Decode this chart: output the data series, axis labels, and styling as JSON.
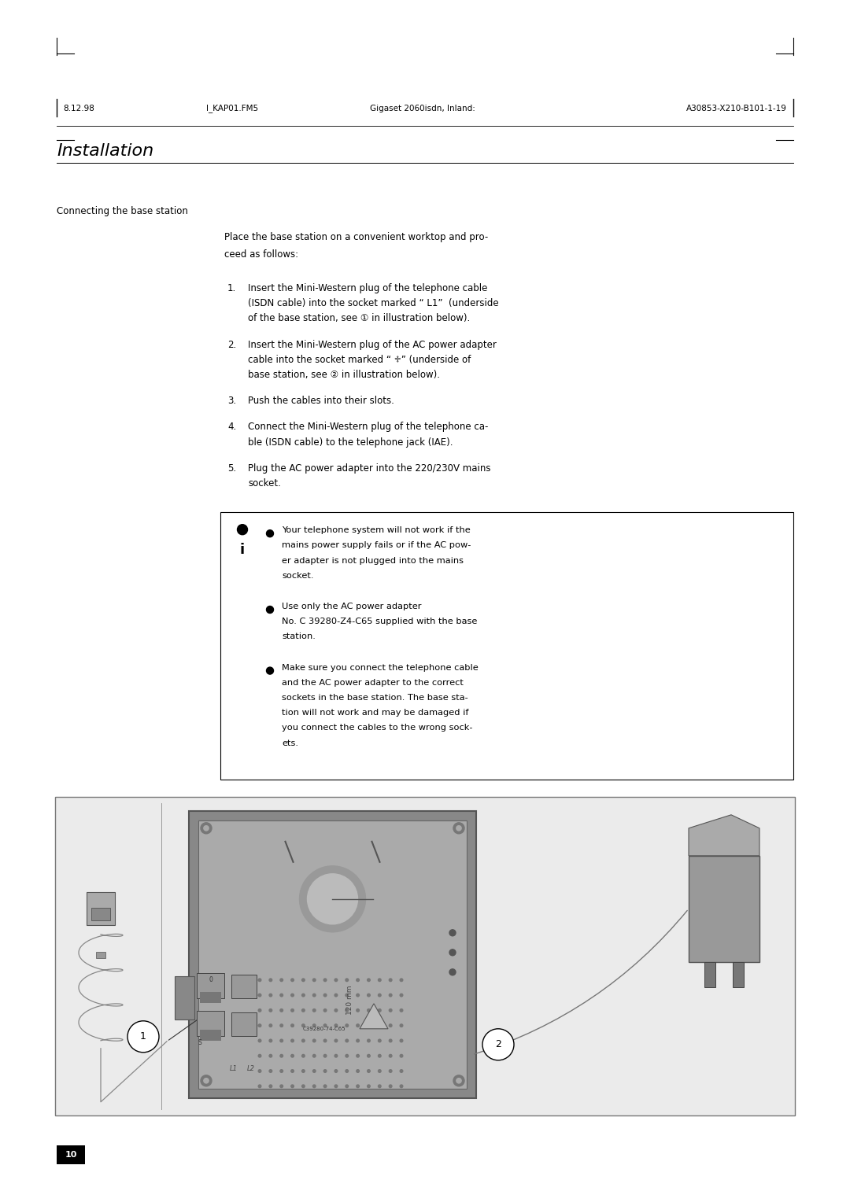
{
  "bg_color": "#ffffff",
  "page_width": 10.8,
  "page_height": 15.28,
  "header_left": "8.12.98",
  "header_center_left": "I_KAP01.FM5",
  "header_center": "Gigaset 2060isdn, Inland:",
  "header_right": "A30853-X210-B101-1-19",
  "title": "Installation",
  "section_label": "Connecting the base station",
  "intro_text": "Place the base station on a convenient worktop and pro-\nceed as follows:",
  "steps": [
    "Insert the Mini-Western plug of the telephone cable\n(ISDN cable) into the socket marked “ L1”  (underside\nof the base station, see ① in illustration below).",
    "Insert the Mini-Western plug of the AC power adapter\ncable into the socket marked “ ♱” (underside of\nbase station, see ② in illustration below).",
    "Push the cables into their slots.",
    "Connect the Mini-Western plug of the telephone ca-\nble (ISDN cable) to the telephone jack (IAE).",
    "Plug the AC power adapter into the 220/230V mains\nsocket."
  ],
  "note_bullets": [
    "Your telephone system will not work if the\nmains power supply fails or if the AC pow-\ner adapter is not plugged into the mains\nsocket.",
    "Use only the AC power adapter\nNo. C 39280-Z4-C65 supplied with the base\nstation.",
    "Make sure you connect the telephone cable\nand the AC power adapter to the correct\nsockets in the base station. The base sta-\ntion will not work and may be damaged if\nyou connect the cables to the wrong sock-\nets."
  ],
  "page_number": "10",
  "ml": 0.72,
  "mr": 0.72,
  "cl": 2.85
}
